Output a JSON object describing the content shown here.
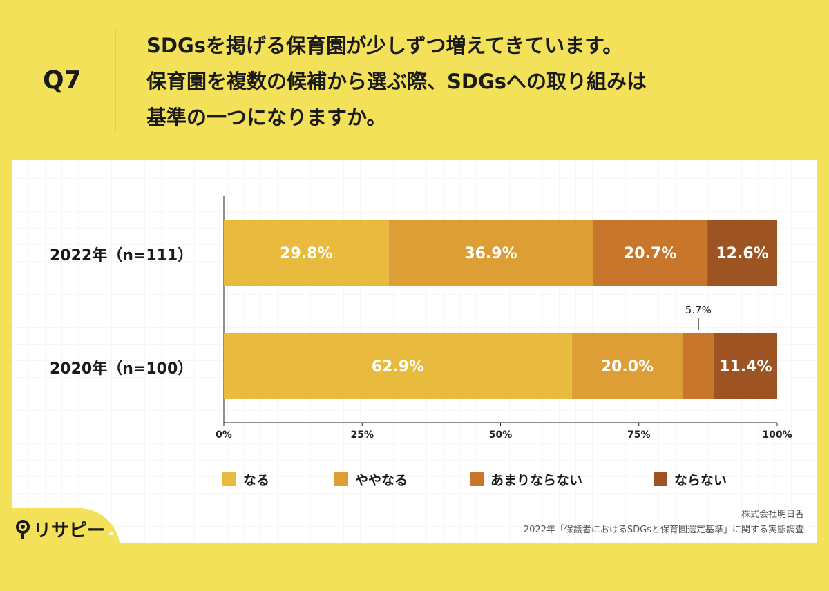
{
  "question": {
    "label": "Q7",
    "line1": "SDGsを掲げる保育園が少しずつ増えてきています。",
    "line2": "保育園を複数の候補から選ぶ際、SDGsへの取り組みは",
    "line3": "基準の一つになりますか。"
  },
  "chart_data": {
    "type": "bar",
    "orientation": "horizontal",
    "stacked": true,
    "categories": [
      "2022年（n=111）",
      "2020年（n=100）"
    ],
    "series": [
      {
        "name": "なる",
        "values": [
          29.8,
          62.9
        ],
        "color": "#E8BB3E"
      },
      {
        "name": "ややなる",
        "values": [
          36.9,
          20.0
        ],
        "color": "#DD9E35"
      },
      {
        "name": "あまりならない",
        "values": [
          20.7,
          5.7
        ],
        "color": "#C8762B"
      },
      {
        "name": "ならない",
        "values": [
          12.6,
          11.4
        ],
        "color": "#9E5422"
      }
    ],
    "data_labels": [
      [
        "29.8%",
        "36.9%",
        "20.7%",
        "12.6%"
      ],
      [
        "62.9%",
        "20.0%",
        "5.7%",
        "11.4%"
      ]
    ],
    "xticks": [
      "0%",
      "25%",
      "50%",
      "75%",
      "100%"
    ],
    "xlim": [
      0,
      100
    ],
    "legend_position": "bottom",
    "grid": false
  },
  "credit": {
    "company": "株式会社明日香",
    "survey": "2022年「保護者におけるSDGsと保育園選定基準」に関する実態調査"
  },
  "logo": {
    "text": "リサピー",
    "dot": "."
  }
}
